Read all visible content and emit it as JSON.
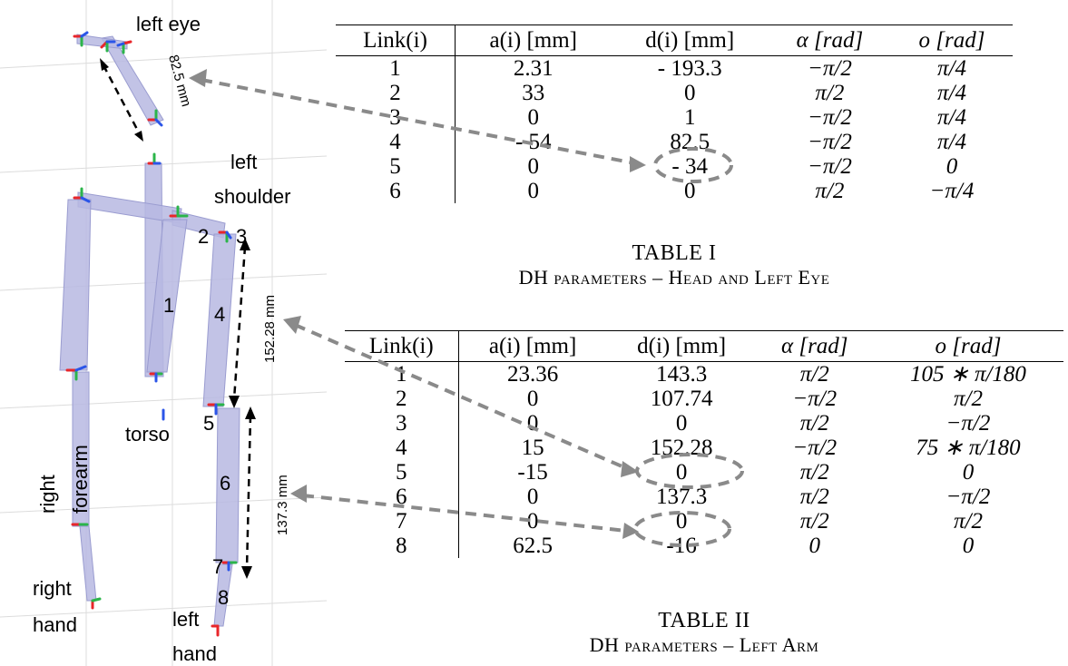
{
  "labels": {
    "left_eye": "left eye",
    "left_shoulder_1": "left",
    "left_shoulder_2": "shoulder",
    "torso": "torso",
    "right_forearm_1": "right",
    "right_forearm_2": "forearm",
    "right_hand_1": "right",
    "right_hand_2": "hand",
    "left_hand_1": "left",
    "left_hand_2": "hand",
    "dim_eye": "82.5 mm",
    "dim_upper_arm": "152.28 mm",
    "dim_forearm": "137.3 mm",
    "joint_1": "1",
    "joint_2": "2",
    "joint_3": "3",
    "joint_4": "4",
    "joint_5": "5",
    "joint_6": "6",
    "joint_7": "7",
    "joint_8": "8"
  },
  "table1": {
    "headers": [
      "Link(i)",
      "a(i) [mm]",
      "d(i) [mm]",
      "α [rad]",
      "o [rad]"
    ],
    "rows": [
      [
        "1",
        "2.31",
        "- 193.3",
        "−π/2",
        "π/4"
      ],
      [
        "2",
        "33",
        "0",
        "π/2",
        "π/4"
      ],
      [
        "3",
        "0",
        "1",
        "−π/2",
        "π/4"
      ],
      [
        "4",
        "- 54",
        "82.5",
        "−π/2",
        "π/4"
      ],
      [
        "5",
        "0",
        "- 34",
        "−π/2",
        "0"
      ],
      [
        "6",
        "0",
        "0",
        "π/2",
        "−π/4"
      ]
    ],
    "caption": "TABLE I",
    "subtitle": "DH parameters – Head and Left Eye"
  },
  "table2": {
    "headers": [
      "Link(i)",
      "a(i) [mm]",
      "d(i) [mm]",
      "α [rad]",
      "o [rad]"
    ],
    "rows": [
      [
        "1",
        "23.36",
        "143.3",
        "π/2",
        "105 ∗ π/180"
      ],
      [
        "2",
        "0",
        "107.74",
        "−π/2",
        "π/2"
      ],
      [
        "3",
        "0",
        "0",
        "π/2",
        "−π/2"
      ],
      [
        "4",
        "15",
        "152.28",
        "−π/2",
        "75 ∗ π/180"
      ],
      [
        "5",
        "-15",
        "0",
        "π/2",
        "0"
      ],
      [
        "6",
        "0",
        "137.3",
        "π/2",
        "−π/2"
      ],
      [
        "7",
        "0",
        "0",
        "π/2",
        "π/2"
      ],
      [
        "8",
        "62.5",
        "-16",
        "0",
        "0"
      ]
    ],
    "caption": "TABLE II",
    "subtitle": "DH parameters – Left Arm"
  },
  "colors": {
    "link_fill": "#b7b9e2",
    "axis_red": "#e8262b",
    "axis_green": "#2bb54a",
    "axis_blue": "#2b55e8",
    "arrow_gray": "#8a8a8a",
    "grid_gray": "#dcdcdc"
  }
}
